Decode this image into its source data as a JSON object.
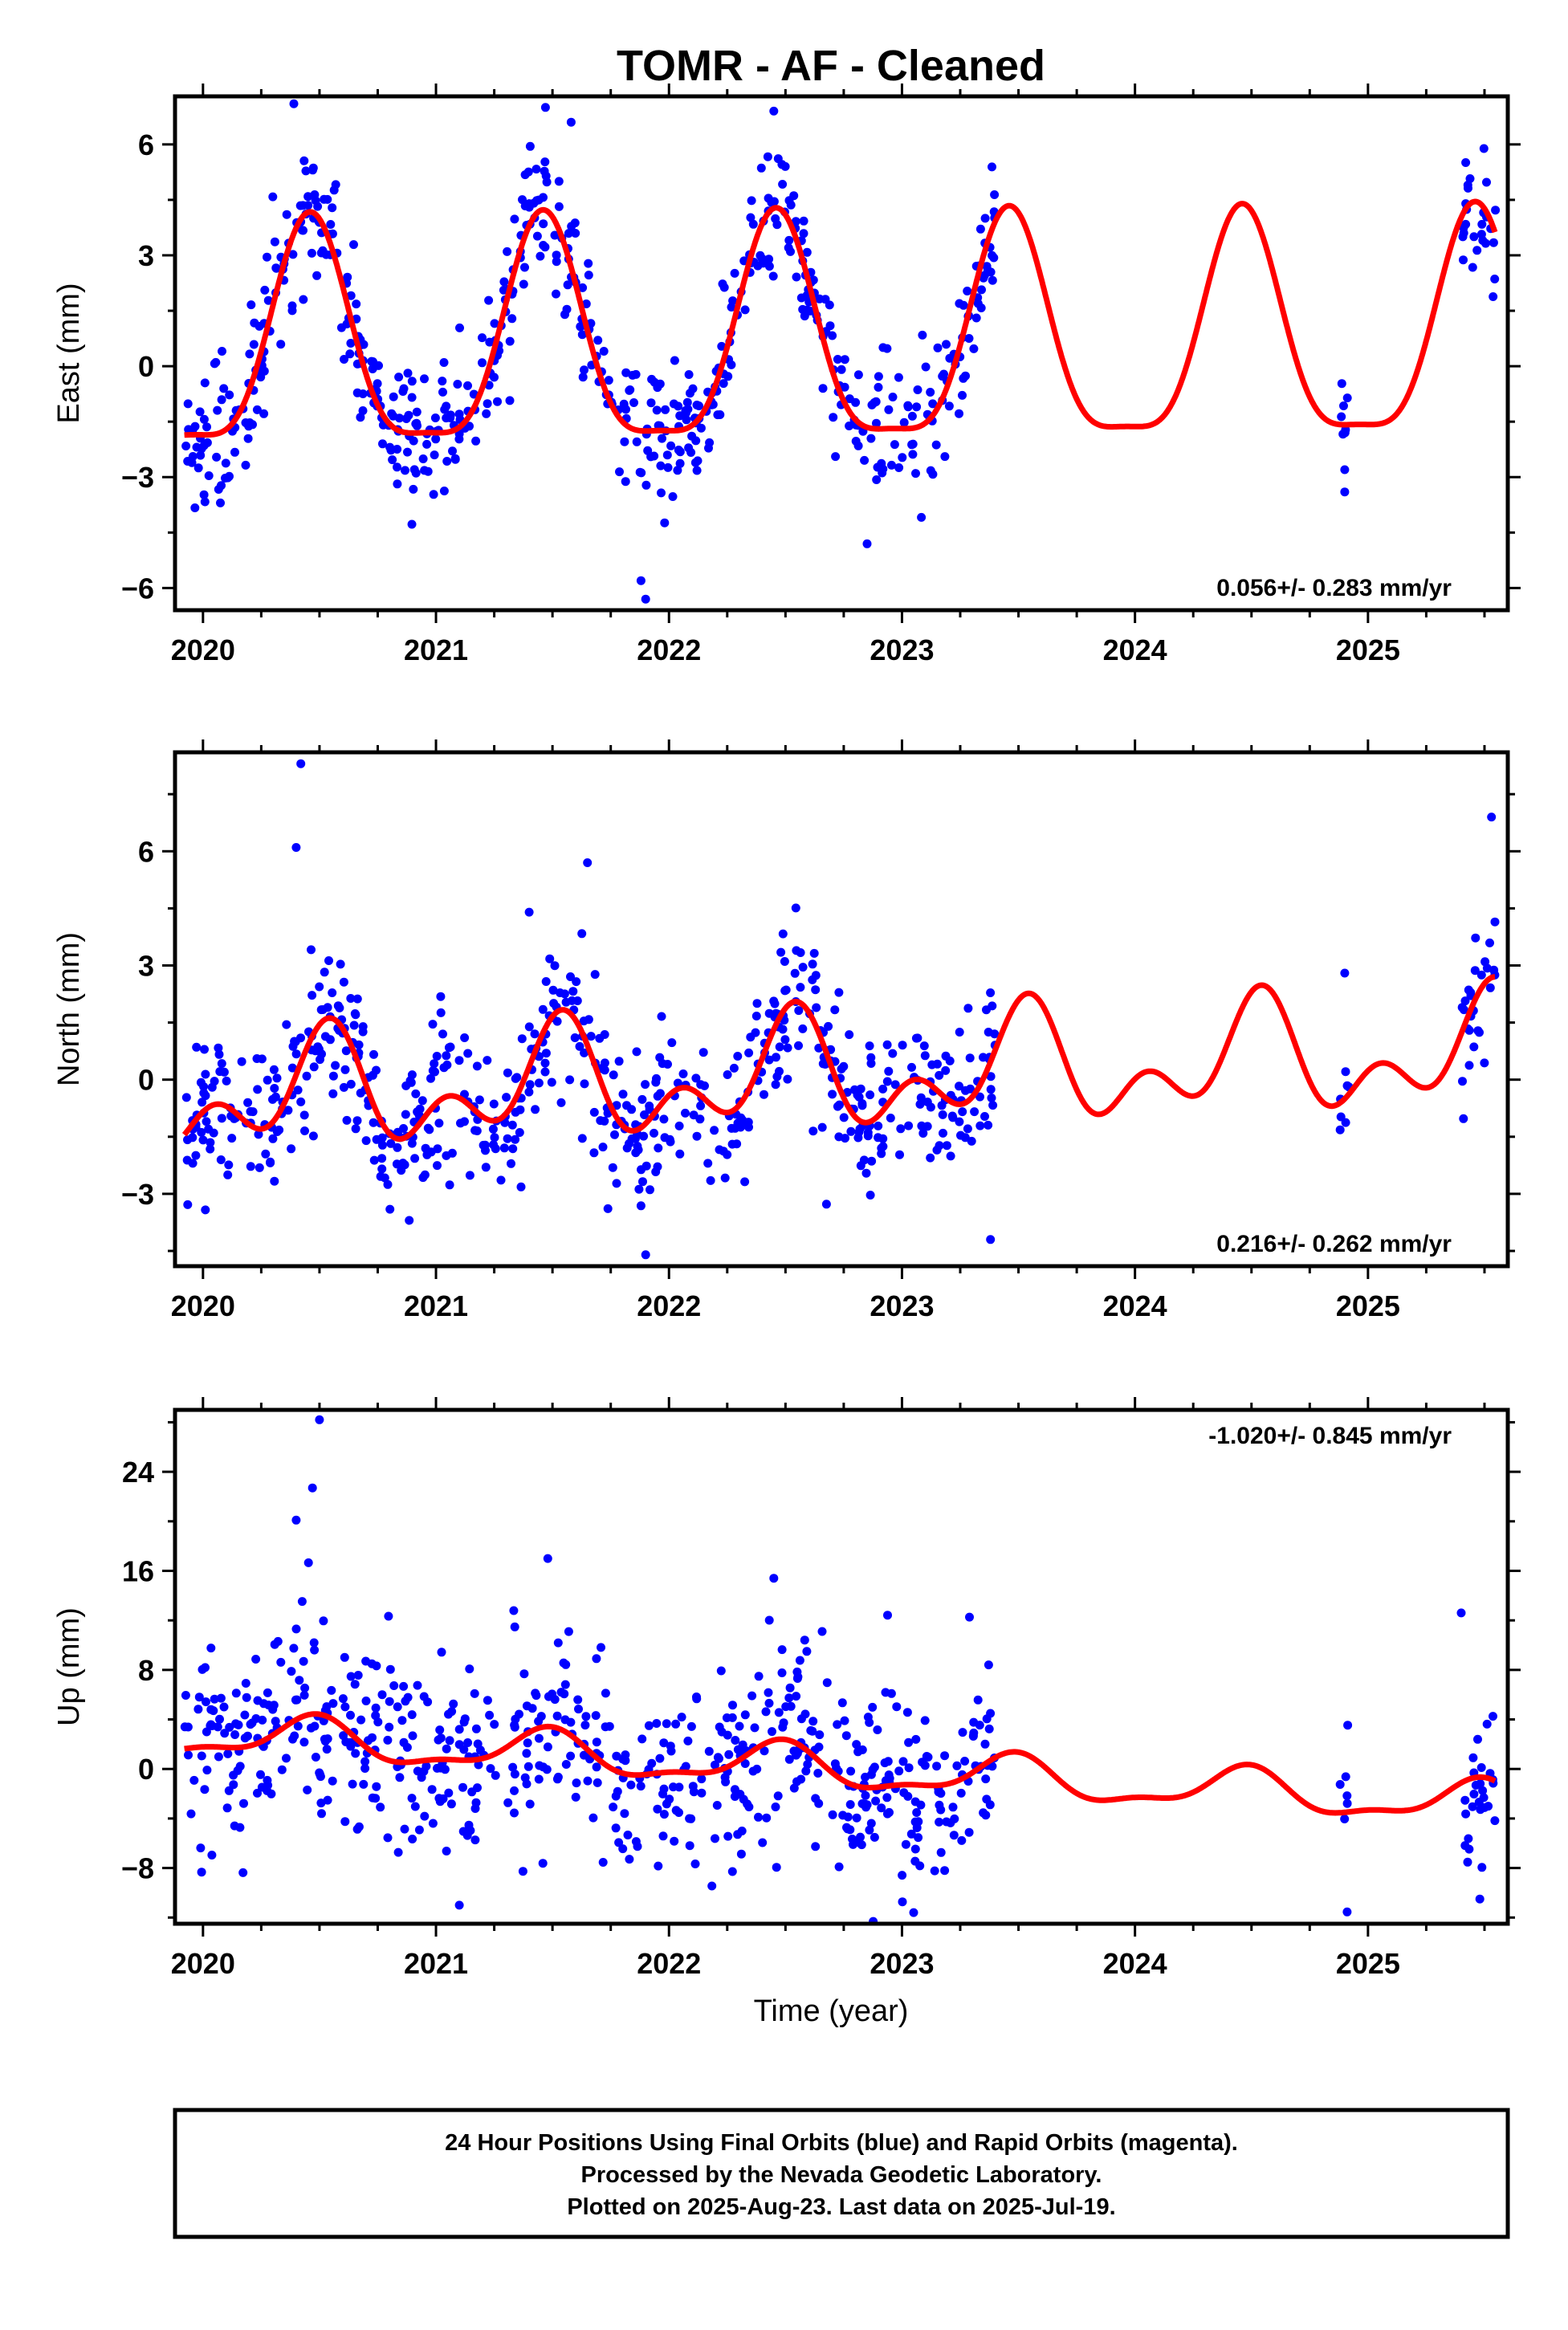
{
  "title": "TOMR  - AF - Cleaned",
  "x_axis_label": "Time (year)",
  "footer": {
    "line1": "24 Hour Positions Using Final Orbits (blue) and Rapid Orbits (magenta).",
    "line2": "Processed by the Nevada Geodetic Laboratory.",
    "line3": "Plotted on 2025-Aug-23. Last data on 2025-Jul-19."
  },
  "colors": {
    "data": "#0000ff",
    "model": "#ff0000",
    "frame": "#000000"
  },
  "chart_data": [
    {
      "type": "scatter",
      "component": "east",
      "ylabel": "East (mm)",
      "rate_label": "0.056+/- 0.283 mm/yr",
      "xlim": [
        2019.88,
        2025.6
      ],
      "ylim": [
        -6.6,
        7.3
      ],
      "xticks": [
        2020,
        2021,
        2022,
        2023,
        2024,
        2025
      ],
      "yticks": [
        -6,
        -3,
        0,
        3,
        6
      ],
      "data_coverage": [
        [
          2019.92,
          2023.4
        ],
        [
          2024.88,
          2024.92
        ],
        [
          2025.4,
          2025.55
        ]
      ],
      "seasonal_model": {
        "offset": 0.5,
        "trend_mm_per_yr": 0.056,
        "trend_ref": 2022.7,
        "annual_amp": 3.0,
        "annual_peak": 2020.46,
        "semiannual_amp": 0.8,
        "semiannual_peak": 2020.46,
        "end": 2025.55
      },
      "scatter": {
        "noise_sd": 0.9,
        "points_per_year": 180,
        "outliers": [
          [
            2020.39,
            7.1
          ],
          [
            2021.47,
            7.0
          ],
          [
            2021.58,
            6.6
          ],
          [
            2022.45,
            6.9
          ],
          [
            2021.9,
            -6.3
          ],
          [
            2021.88,
            -5.8
          ],
          [
            2024.9,
            -3.4
          ],
          [
            2024.9,
            -2.8
          ]
        ]
      },
      "rate_position": "bottom-right"
    },
    {
      "type": "scatter",
      "component": "north",
      "ylabel": "North (mm)",
      "rate_label": "0.216+/- 0.262 mm/yr",
      "xlim": [
        2019.88,
        2025.6
      ],
      "ylim": [
        -4.9,
        8.6
      ],
      "xticks": [
        2020,
        2021,
        2022,
        2023,
        2024,
        2025
      ],
      "yticks": [
        -3,
        0,
        3,
        6
      ],
      "data_coverage": [
        [
          2019.92,
          2023.4
        ],
        [
          2024.88,
          2024.92
        ],
        [
          2025.4,
          2025.55
        ]
      ],
      "seasonal_model": {
        "offset": 0.1,
        "trend_mm_per_yr": 0.216,
        "trend_ref": 2022.7,
        "annual_amp": 1.1,
        "annual_peak": 2020.52,
        "semiannual_amp": 0.9,
        "semiannual_peak": 2020.55,
        "end": 2025.55
      },
      "scatter": {
        "noise_sd": 1.0,
        "points_per_year": 180,
        "outliers": [
          [
            2020.42,
            8.3
          ],
          [
            2020.4,
            6.1
          ],
          [
            2021.65,
            5.7
          ],
          [
            2021.4,
            4.4
          ],
          [
            2021.9,
            -4.6
          ],
          [
            2023.38,
            -4.2
          ],
          [
            2025.53,
            6.9
          ],
          [
            2024.9,
            2.8
          ]
        ]
      },
      "rate_position": "bottom-right"
    },
    {
      "type": "scatter",
      "component": "up",
      "ylabel": "Up (mm)",
      "rate_label": "-1.020+/- 0.845 mm/yr",
      "xlim": [
        2019.88,
        2025.6
      ],
      "ylim": [
        -12.5,
        29.0
      ],
      "xticks": [
        2020,
        2021,
        2022,
        2023,
        2024,
        2025
      ],
      "yticks": [
        -8,
        0,
        8,
        16,
        24
      ],
      "data_coverage": [
        [
          2019.92,
          2023.4
        ],
        [
          2024.88,
          2024.92
        ],
        [
          2025.4,
          2025.55
        ]
      ],
      "seasonal_model": {
        "offset": 0.0,
        "trend_mm_per_yr": -1.02,
        "trend_ref": 2022.7,
        "annual_amp": 1.6,
        "annual_peak": 2020.47,
        "semiannual_amp": 0.6,
        "semiannual_peak": 2020.5,
        "end": 2025.55
      },
      "scatter": {
        "noise_sd": 4.0,
        "points_per_year": 180,
        "outliers": [
          [
            2020.5,
            28.2
          ],
          [
            2020.47,
            22.7
          ],
          [
            2020.4,
            20.1
          ],
          [
            2021.48,
            17.0
          ],
          [
            2022.45,
            15.4
          ],
          [
            2025.4,
            12.6
          ],
          [
            2023.05,
            -11.6
          ],
          [
            2025.48,
            -10.5
          ],
          [
            2021.1,
            -11.0
          ]
        ]
      },
      "rate_position": "top-right"
    }
  ]
}
